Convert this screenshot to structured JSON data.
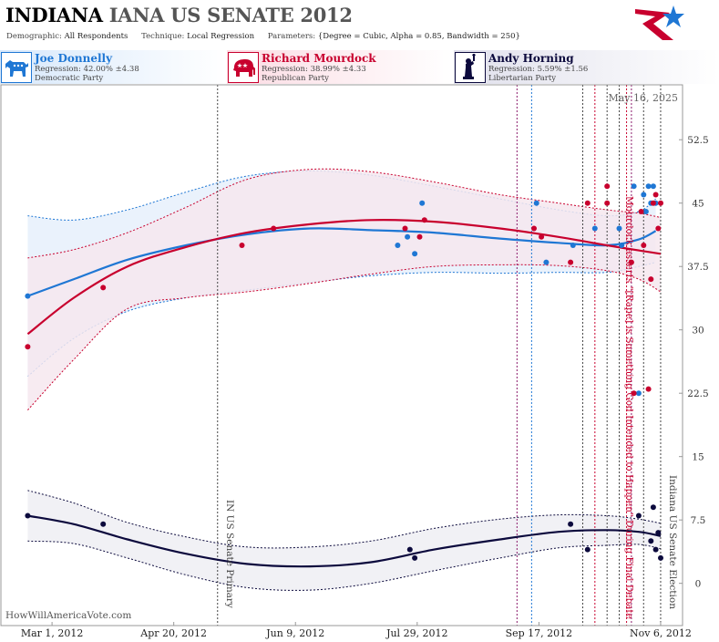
{
  "header": {
    "title_state": "INDIANA",
    "title_rest": "IANA US SENATE 2012",
    "demographic_label": "Demographic:",
    "demographic_value": "All Respondents",
    "technique_label": "Technique:",
    "technique_value": "Local Regression",
    "parameters_label": "Parameters:",
    "parameters_value": "{Degree = Cubic, Alpha = 0.85, Bandwidth = 250}"
  },
  "candidates": [
    {
      "name": "Joe Donnelly",
      "regression": "Regression: 42.00% ±4.38",
      "party": "Democratic Party",
      "color": "#1f77d4",
      "icon": "donkey-icon"
    },
    {
      "name": "Richard Mourdock",
      "regression": "Regression: 38.99% ±4.33",
      "party": "Republican Party",
      "color": "#c8002e",
      "icon": "elephant-icon"
    },
    {
      "name": "Andy Horning",
      "regression": "Regression: 5.59% ±1.56",
      "party": "Libertarian Party",
      "color": "#0c0a3d",
      "icon": "liberty-statue-icon"
    }
  ],
  "date_stamp": "May 16, 2025",
  "watermark": "HowWillAmericaVote.com",
  "chart_data": {
    "type": "scatter",
    "x_range": [
      "2012-02-09",
      "2012-11-15"
    ],
    "y_range": [
      -5,
      59
    ],
    "y_ticks": [
      0,
      7.5,
      15,
      22.5,
      30,
      37.5,
      45,
      52.5
    ],
    "y_tick_labels": [
      "0",
      "7.5",
      "15",
      "22.5",
      "30",
      "37.5",
      "45",
      "52.5"
    ],
    "x_ticks": [
      "2012-03-01",
      "2012-04-20",
      "2012-06-09",
      "2012-07-29",
      "2012-09-17",
      "2012-11-06"
    ],
    "x_tick_labels": [
      "Mar 1, 2012",
      "Apr 20, 2012",
      "Jun 9, 2012",
      "Jul 29, 2012",
      "Sep 17, 2012",
      "Nov 6, 2012"
    ],
    "events": [
      {
        "date": "2012-05-08",
        "label": "IN US Senate Primary",
        "color": "#444444"
      },
      {
        "date": "2012-10-23",
        "label": "Mourdock asserts \"[Rape] is Something God Intended to Happen\" During Final Debate",
        "color": "#c8002e"
      },
      {
        "date": "2012-11-06",
        "label": "Indiana US Senate Election",
        "color": "#444444"
      }
    ],
    "vlines": [
      {
        "date": "2012-05-08",
        "color": "#444444"
      },
      {
        "date": "2012-09-08",
        "color": "#8b1a6b"
      },
      {
        "date": "2012-09-14",
        "color": "#1f77d4"
      },
      {
        "date": "2012-10-05",
        "color": "#444444"
      },
      {
        "date": "2012-10-10",
        "color": "#c8002e"
      },
      {
        "date": "2012-10-15",
        "color": "#444444"
      },
      {
        "date": "2012-10-20",
        "color": "#444444"
      },
      {
        "date": "2012-10-23",
        "color": "#c8002e"
      },
      {
        "date": "2012-10-25",
        "color": "#8b1a6b"
      },
      {
        "date": "2012-10-30",
        "color": "#444444"
      },
      {
        "date": "2012-11-06",
        "color": "#444444"
      }
    ],
    "series": [
      {
        "name": "Joe Donnelly",
        "color": "#1f77d4",
        "fill": "#e6f0fb",
        "points": [
          [
            "2012-02-20",
            34
          ],
          [
            "2012-07-21",
            40
          ],
          [
            "2012-07-25",
            41
          ],
          [
            "2012-07-28",
            39
          ],
          [
            "2012-07-31",
            45
          ],
          [
            "2012-09-16",
            45
          ],
          [
            "2012-09-20",
            38
          ],
          [
            "2012-10-01",
            40
          ],
          [
            "2012-10-10",
            42
          ],
          [
            "2012-10-20",
            42
          ],
          [
            "2012-10-21",
            40
          ],
          [
            "2012-10-26",
            47
          ],
          [
            "2012-10-28",
            22.5
          ],
          [
            "2012-10-30",
            46
          ],
          [
            "2012-10-31",
            44
          ],
          [
            "2012-11-01",
            47
          ],
          [
            "2012-11-02",
            45
          ],
          [
            "2012-11-03",
            47
          ],
          [
            "2012-11-04",
            45
          ]
        ],
        "fit": [
          [
            "2012-02-20",
            34
          ],
          [
            "2012-03-10",
            36
          ],
          [
            "2012-04-01",
            38.3
          ],
          [
            "2012-04-25",
            40
          ],
          [
            "2012-05-20",
            41.3
          ],
          [
            "2012-06-15",
            42
          ],
          [
            "2012-07-10",
            41.8
          ],
          [
            "2012-08-05",
            41.5
          ],
          [
            "2012-09-01",
            40.8
          ],
          [
            "2012-09-25",
            40.3
          ],
          [
            "2012-10-15",
            40
          ],
          [
            "2012-10-28",
            40.7
          ],
          [
            "2012-11-04",
            41.7
          ]
        ],
        "upper": [
          [
            "2012-02-20",
            43.5
          ],
          [
            "2012-03-10",
            43
          ],
          [
            "2012-04-01",
            44.2
          ],
          [
            "2012-04-25",
            46.3
          ],
          [
            "2012-05-20",
            48.2
          ],
          [
            "2012-06-15",
            48.8
          ],
          [
            "2012-07-10",
            48.3
          ],
          [
            "2012-08-05",
            47
          ],
          [
            "2012-09-01",
            45.5
          ],
          [
            "2012-09-25",
            44.2
          ],
          [
            "2012-10-15",
            43.5
          ],
          [
            "2012-10-28",
            44
          ],
          [
            "2012-11-04",
            45.5
          ]
        ],
        "lower": [
          [
            "2012-02-20",
            24.5
          ],
          [
            "2012-03-10",
            29
          ],
          [
            "2012-04-01",
            32.2
          ],
          [
            "2012-04-25",
            33.8
          ],
          [
            "2012-05-20",
            34.7
          ],
          [
            "2012-06-15",
            35.6
          ],
          [
            "2012-07-10",
            36.4
          ],
          [
            "2012-08-05",
            36.8
          ],
          [
            "2012-09-01",
            36.7
          ],
          [
            "2012-09-25",
            36.8
          ],
          [
            "2012-10-15",
            36.8
          ],
          [
            "2012-10-28",
            37.5
          ],
          [
            "2012-11-04",
            38
          ]
        ]
      },
      {
        "name": "Richard Mourdock",
        "color": "#c8002e",
        "fill": "#f6e8ef",
        "points": [
          [
            "2012-02-20",
            28
          ],
          [
            "2012-03-22",
            35
          ],
          [
            "2012-05-18",
            40
          ],
          [
            "2012-05-31",
            42
          ],
          [
            "2012-07-24",
            42
          ],
          [
            "2012-07-30",
            41
          ],
          [
            "2012-08-01",
            43
          ],
          [
            "2012-09-15",
            42
          ],
          [
            "2012-09-18",
            41
          ],
          [
            "2012-09-30",
            38
          ],
          [
            "2012-10-07",
            45
          ],
          [
            "2012-10-15",
            45
          ],
          [
            "2012-10-15",
            47
          ],
          [
            "2012-10-25",
            38
          ],
          [
            "2012-10-26",
            22.5
          ],
          [
            "2012-10-29",
            44
          ],
          [
            "2012-10-30",
            40
          ],
          [
            "2012-11-01",
            23
          ],
          [
            "2012-11-02",
            36
          ],
          [
            "2012-11-03",
            45
          ],
          [
            "2012-11-04",
            46
          ],
          [
            "2012-11-05",
            42
          ],
          [
            "2012-11-06",
            45
          ]
        ],
        "fit": [
          [
            "2012-02-20",
            29.5
          ],
          [
            "2012-03-10",
            33.8
          ],
          [
            "2012-04-01",
            37.5
          ],
          [
            "2012-04-25",
            39.8
          ],
          [
            "2012-05-20",
            41.5
          ],
          [
            "2012-06-15",
            42.5
          ],
          [
            "2012-07-10",
            43
          ],
          [
            "2012-08-05",
            42.8
          ],
          [
            "2012-09-01",
            42
          ],
          [
            "2012-09-25",
            41
          ],
          [
            "2012-10-15",
            40
          ],
          [
            "2012-10-28",
            39.4
          ],
          [
            "2012-11-06",
            39
          ]
        ],
        "upper": [
          [
            "2012-02-20",
            38.5
          ],
          [
            "2012-03-10",
            39.5
          ],
          [
            "2012-04-01",
            41.5
          ],
          [
            "2012-04-25",
            44.5
          ],
          [
            "2012-05-20",
            47.8
          ],
          [
            "2012-06-15",
            49
          ],
          [
            "2012-07-10",
            48.7
          ],
          [
            "2012-08-05",
            47.5
          ],
          [
            "2012-09-01",
            46
          ],
          [
            "2012-09-25",
            45
          ],
          [
            "2012-10-15",
            44.2
          ],
          [
            "2012-10-28",
            43.8
          ],
          [
            "2012-11-06",
            43.3
          ]
        ],
        "lower": [
          [
            "2012-02-20",
            20.5
          ],
          [
            "2012-03-10",
            26.5
          ],
          [
            "2012-04-01",
            32.5
          ],
          [
            "2012-04-25",
            33.8
          ],
          [
            "2012-05-20",
            34.5
          ],
          [
            "2012-06-15",
            35.5
          ],
          [
            "2012-07-10",
            36.6
          ],
          [
            "2012-08-05",
            37.5
          ],
          [
            "2012-09-01",
            37.7
          ],
          [
            "2012-09-25",
            37.6
          ],
          [
            "2012-10-15",
            37
          ],
          [
            "2012-10-28",
            36
          ],
          [
            "2012-11-06",
            34.5
          ]
        ]
      },
      {
        "name": "Andy Horning",
        "color": "#0c0a3d",
        "fill": "#eeeef3",
        "points": [
          [
            "2012-02-20",
            8
          ],
          [
            "2012-03-22",
            7
          ],
          [
            "2012-07-26",
            4
          ],
          [
            "2012-07-28",
            3
          ],
          [
            "2012-09-30",
            7
          ],
          [
            "2012-10-07",
            4
          ],
          [
            "2012-10-28",
            8
          ],
          [
            "2012-11-02",
            5
          ],
          [
            "2012-11-03",
            9
          ],
          [
            "2012-11-04",
            4
          ],
          [
            "2012-11-05",
            6
          ],
          [
            "2012-11-06",
            3
          ]
        ],
        "fit": [
          [
            "2012-02-20",
            8
          ],
          [
            "2012-03-10",
            7
          ],
          [
            "2012-04-01",
            5.2
          ],
          [
            "2012-04-25",
            3.5
          ],
          [
            "2012-05-20",
            2.3
          ],
          [
            "2012-06-15",
            2
          ],
          [
            "2012-07-10",
            2.5
          ],
          [
            "2012-08-05",
            4
          ],
          [
            "2012-09-01",
            5.2
          ],
          [
            "2012-09-25",
            6.1
          ],
          [
            "2012-10-15",
            6.3
          ],
          [
            "2012-10-28",
            6.1
          ],
          [
            "2012-11-06",
            5.6
          ]
        ],
        "upper": [
          [
            "2012-02-20",
            11
          ],
          [
            "2012-03-10",
            9.5
          ],
          [
            "2012-04-01",
            7.2
          ],
          [
            "2012-04-25",
            5.5
          ],
          [
            "2012-05-20",
            4.3
          ],
          [
            "2012-06-15",
            4.3
          ],
          [
            "2012-07-10",
            5
          ],
          [
            "2012-08-05",
            6.5
          ],
          [
            "2012-09-01",
            7.6
          ],
          [
            "2012-09-25",
            8.1
          ],
          [
            "2012-10-15",
            8
          ],
          [
            "2012-10-28",
            7.6
          ],
          [
            "2012-11-06",
            7.1
          ]
        ],
        "lower": [
          [
            "2012-02-20",
            5
          ],
          [
            "2012-03-10",
            4.7
          ],
          [
            "2012-04-01",
            3
          ],
          [
            "2012-04-25",
            1
          ],
          [
            "2012-05-20",
            -0.5
          ],
          [
            "2012-06-15",
            -0.8
          ],
          [
            "2012-07-10",
            0
          ],
          [
            "2012-08-05",
            1.5
          ],
          [
            "2012-09-01",
            3
          ],
          [
            "2012-09-25",
            4.2
          ],
          [
            "2012-10-15",
            4.5
          ],
          [
            "2012-10-28",
            4.6
          ],
          [
            "2012-11-06",
            4.1
          ]
        ]
      }
    ]
  }
}
